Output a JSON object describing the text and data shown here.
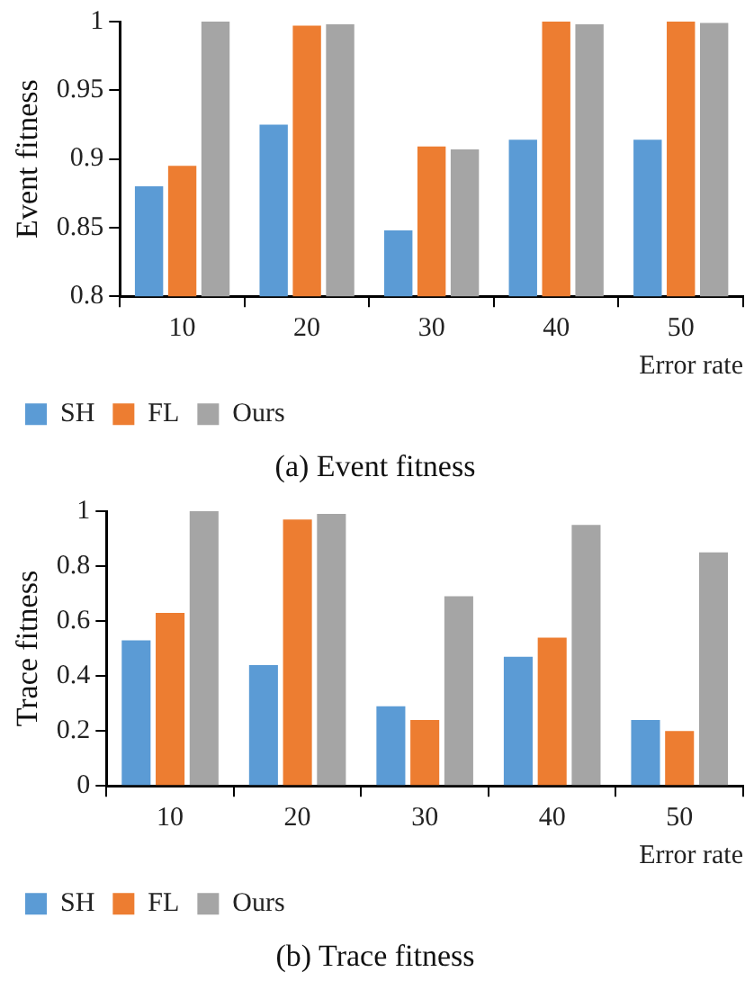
{
  "chart_data": [
    {
      "type": "bar",
      "title": "(a) Event fitness",
      "xlabel": "Error rate",
      "ylabel": "Event fitness",
      "categories": [
        "10",
        "20",
        "30",
        "40",
        "50"
      ],
      "series": [
        {
          "name": "SH",
          "color": "#5b9bd5",
          "values": [
            0.88,
            0.925,
            0.848,
            0.914,
            0.914
          ]
        },
        {
          "name": "FL",
          "color": "#ed7d31",
          "values": [
            0.895,
            0.997,
            0.909,
            1.0,
            1.0
          ]
        },
        {
          "name": "Ours",
          "color": "#a5a5a5",
          "values": [
            1.0,
            0.998,
            0.907,
            0.998,
            0.999
          ]
        }
      ],
      "ylim": [
        0.8,
        1
      ],
      "yticks": [
        0.8,
        0.85,
        0.9,
        0.95,
        1
      ],
      "grid": false,
      "legend": "bottom left"
    },
    {
      "type": "bar",
      "title": "(b) Trace fitness",
      "xlabel": "Error rate",
      "ylabel": "Trace fitness",
      "categories": [
        "10",
        "20",
        "30",
        "40",
        "50"
      ],
      "series": [
        {
          "name": "SH",
          "color": "#5b9bd5",
          "values": [
            0.53,
            0.44,
            0.29,
            0.47,
            0.24
          ]
        },
        {
          "name": "FL",
          "color": "#ed7d31",
          "values": [
            0.63,
            0.97,
            0.24,
            0.54,
            0.2
          ]
        },
        {
          "name": "Ours",
          "color": "#a5a5a5",
          "values": [
            1.0,
            0.99,
            0.69,
            0.95,
            0.85
          ]
        }
      ],
      "ylim": [
        0,
        1
      ],
      "yticks": [
        0,
        0.2,
        0.4,
        0.6,
        0.8,
        1
      ],
      "grid": false,
      "legend": "bottom left"
    }
  ]
}
